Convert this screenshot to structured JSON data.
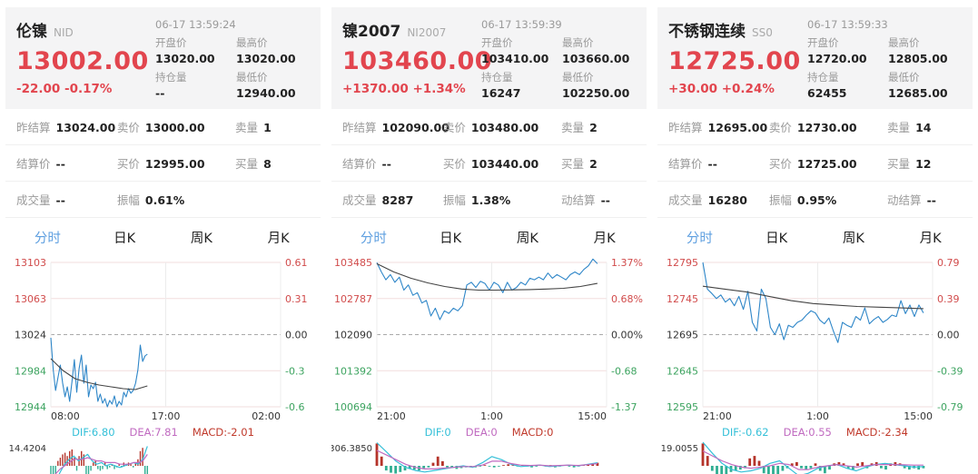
{
  "colors": {
    "accent_red": "#e2454e",
    "up": "#d14b4b",
    "down": "#3ca35f",
    "flat": "#333333",
    "price_line": "#2e86c8",
    "avg_line": "#444444",
    "dif": "#35c0d8",
    "dea": "#c06ac0",
    "hist_up": "#b5342a",
    "hist_down": "#2fae92",
    "tab_active": "#5e9fe0",
    "header_bg": "#f4f4f5"
  },
  "panels": [
    {
      "title": "伦镍",
      "code": "NID",
      "timestamp": "06-17 13:59:24",
      "last_price": "13002.00",
      "change": "-22.00 -0.17%",
      "fields": {
        "open": {
          "label": "开盘价",
          "value": "13020.00"
        },
        "high": {
          "label": "最高价",
          "value": "13020.00"
        },
        "position": {
          "label": "持仓量",
          "value": "--"
        },
        "low": {
          "label": "最低价",
          "value": "12940.00"
        }
      },
      "rows": [
        [
          {
            "label": "昨结算",
            "value": "13024.00"
          },
          {
            "label": "卖价",
            "value": "13000.00"
          },
          {
            "label": "卖量",
            "value": "1"
          }
        ],
        [
          {
            "label": "结算价",
            "value": "--"
          },
          {
            "label": "买价",
            "value": "12995.00"
          },
          {
            "label": "买量",
            "value": "8"
          }
        ],
        [
          {
            "label": "成交量",
            "value": "--"
          },
          {
            "label": "振幅",
            "value": "0.61%"
          },
          {
            "label": "",
            "value": ""
          }
        ]
      ],
      "tabs": [
        {
          "label": "分时"
        },
        {
          "label": "日K"
        },
        {
          "label": "周K"
        },
        {
          "label": "月K"
        }
      ]
    },
    {
      "title": "镍2007",
      "code": "NI2007",
      "timestamp": "06-17 13:59:39",
      "last_price": "103460.00",
      "change": "+1370.00 +1.34%",
      "fields": {
        "open": {
          "label": "开盘价",
          "value": "103410.00"
        },
        "high": {
          "label": "最高价",
          "value": "103660.00"
        },
        "position": {
          "label": "持仓量",
          "value": "16247"
        },
        "low": {
          "label": "最低价",
          "value": "102250.00"
        }
      },
      "rows": [
        [
          {
            "label": "昨结算",
            "value": "102090.00"
          },
          {
            "label": "卖价",
            "value": "103480.00"
          },
          {
            "label": "卖量",
            "value": "2"
          }
        ],
        [
          {
            "label": "结算价",
            "value": "--"
          },
          {
            "label": "买价",
            "value": "103440.00"
          },
          {
            "label": "买量",
            "value": "2"
          }
        ],
        [
          {
            "label": "成交量",
            "value": "8287"
          },
          {
            "label": "振幅",
            "value": "1.38%"
          },
          {
            "label": "动结算",
            "value": "--"
          }
        ]
      ],
      "tabs": [
        {
          "label": "分时"
        },
        {
          "label": "日K"
        },
        {
          "label": "周K"
        },
        {
          "label": "月K"
        }
      ]
    },
    {
      "title": "不锈钢连续",
      "code": "SS0",
      "timestamp": "06-17 13:59:33",
      "last_price": "12725.00",
      "change": "+30.00 +0.24%",
      "fields": {
        "open": {
          "label": "开盘价",
          "value": "12720.00"
        },
        "high": {
          "label": "最高价",
          "value": "12805.00"
        },
        "position": {
          "label": "持仓量",
          "value": "62455"
        },
        "low": {
          "label": "最低价",
          "value": "12685.00"
        }
      },
      "rows": [
        [
          {
            "label": "昨结算",
            "value": "12695.00"
          },
          {
            "label": "卖价",
            "value": "12730.00"
          },
          {
            "label": "卖量",
            "value": "14"
          }
        ],
        [
          {
            "label": "结算价",
            "value": "--"
          },
          {
            "label": "买价",
            "value": "12725.00"
          },
          {
            "label": "买量",
            "value": "12"
          }
        ],
        [
          {
            "label": "成交量",
            "value": "16280"
          },
          {
            "label": "振幅",
            "value": "0.95%"
          },
          {
            "label": "动结算",
            "value": "--"
          }
        ]
      ],
      "tabs": [
        {
          "label": "分时"
        },
        {
          "label": "日K"
        },
        {
          "label": "周K"
        },
        {
          "label": "月K"
        }
      ]
    }
  ],
  "chart_data": [
    {
      "type": "line",
      "title": "伦镍 分时图",
      "x_labels": [
        "08:00",
        "17:00",
        "02:00"
      ],
      "y_axis": {
        "labels": [
          "13103",
          "13063",
          "13024",
          "12984",
          "12944"
        ],
        "colors": [
          "up",
          "up",
          "flat",
          "down",
          "down"
        ]
      },
      "y2_axis": {
        "labels": [
          "0.61",
          "0.31",
          "0.00",
          "-0.3",
          "-0.6"
        ]
      },
      "ylim": [
        12944,
        13103
      ],
      "series": [
        {
          "name": "price",
          "xrange": [
            0,
            0.42
          ],
          "values": [
            13020,
            12985,
            12962,
            12976,
            12990,
            12970,
            12955,
            12966,
            12950,
            12972,
            12996,
            12960,
            12986,
            13001,
            12970,
            12990,
            12955,
            12968,
            12964,
            12971,
            12950,
            12958,
            12948,
            12953,
            12944,
            12951,
            12947,
            12956,
            12944,
            12950,
            12946,
            12960,
            12955,
            12964,
            12959,
            12962,
            12970,
            12985,
            13012,
            12994,
            13000,
            13002
          ]
        },
        {
          "name": "avg",
          "xrange": [
            0,
            0.42
          ],
          "values": [
            12997,
            12984,
            12975,
            12971,
            12968,
            12966,
            12964,
            12963,
            12967
          ]
        }
      ],
      "macd": {
        "labels": {
          "dif": "DIF:6.80",
          "dea": "DEA:7.81",
          "macd": "MACD:-2.01"
        },
        "y_top": "14.4204",
        "y_bottom": "-14.4204",
        "ylim": 14.4204,
        "hist": {
          "xrange": [
            0,
            0.42
          ],
          "values": [
            -12,
            -9,
            -5,
            3,
            5,
            7,
            8,
            6,
            9,
            10,
            5,
            -3,
            6,
            9,
            7,
            -5,
            -6,
            -3,
            2,
            3,
            -2,
            -3,
            -2,
            2,
            -2,
            -1,
            1,
            -2,
            -1,
            1,
            -1,
            2,
            1,
            2,
            1,
            -1,
            2,
            4,
            9,
            11,
            -6,
            -9
          ]
        },
        "dif": {
          "xrange": [
            0,
            0.42
          ],
          "values": [
            -14,
            -10,
            -4,
            1,
            4,
            6,
            3,
            5,
            7,
            3,
            1,
            2,
            0,
            1,
            0,
            -1,
            0,
            1,
            2,
            1,
            4,
            12
          ]
        },
        "dea": {
          "xrange": [
            0,
            0.42
          ],
          "values": [
            -8,
            -5,
            -2,
            0,
            2,
            4,
            4,
            4,
            5,
            4,
            3,
            3,
            2,
            2,
            2,
            1,
            1,
            1,
            2,
            2,
            3,
            7
          ]
        }
      }
    },
    {
      "type": "line",
      "title": "镍2007 分时图",
      "x_labels": [
        "21:00",
        "1:00",
        "15:00"
      ],
      "y_axis": {
        "labels": [
          "103485",
          "102787",
          "102090",
          "101392",
          "100694"
        ],
        "colors": [
          "up",
          "up",
          "flat",
          "down",
          "down"
        ]
      },
      "y2_axis": {
        "labels": [
          "1.37%",
          "0.68%",
          "0.00%",
          "-0.68",
          "-1.37"
        ]
      },
      "ylim": [
        100694,
        103485
      ],
      "series": [
        {
          "name": "price",
          "xrange": [
            0,
            0.96
          ],
          "values": [
            103480,
            103300,
            103150,
            103250,
            103100,
            103200,
            102950,
            103050,
            102850,
            102900,
            102700,
            102750,
            102450,
            102600,
            102380,
            102550,
            102500,
            102600,
            102550,
            102650,
            103050,
            103100,
            103000,
            103120,
            103080,
            102950,
            103100,
            103050,
            102900,
            103100,
            102950,
            103000,
            103100,
            103050,
            103180,
            103150,
            103200,
            103150,
            103280,
            103180,
            103250,
            103200,
            103150,
            103250,
            103300,
            103250,
            103350,
            103420,
            103550,
            103460
          ]
        },
        {
          "name": "avg",
          "xrange": [
            0,
            0.96
          ],
          "values": [
            103460,
            103300,
            103180,
            103090,
            103020,
            102970,
            102950,
            102950,
            102955,
            102960,
            102970,
            102985,
            103020,
            103080
          ]
        }
      ],
      "macd": {
        "labels": {
          "dif": "DIF:0",
          "dea": "DEA:0",
          "macd": "MACD:0"
        },
        "y_top": "306.3850",
        "y_bottom": "306.3850",
        "ylim": 306.385,
        "hist": {
          "xrange": [
            0,
            0.96
          ],
          "values": [
            290,
            120,
            -60,
            -90,
            -100,
            -80,
            -60,
            -40,
            -50,
            -60,
            -30,
            -20,
            40,
            120,
            60,
            -20,
            -30,
            -40,
            -30,
            -20,
            -10,
            -20,
            -10,
            10,
            -10,
            -20,
            -10,
            10,
            20,
            10,
            -10,
            10,
            -10,
            -20,
            -10,
            10,
            -10,
            10,
            -20,
            -10,
            10,
            -10,
            -20,
            -10,
            10,
            20,
            30,
            40
          ]
        },
        "dif": {
          "xrange": [
            0,
            0.96
          ],
          "values": [
            300,
            180,
            60,
            -20,
            -60,
            -80,
            -60,
            -40,
            -20,
            0,
            -20,
            40,
            120,
            80,
            20,
            -10,
            0,
            10,
            -10,
            0,
            10,
            0,
            20,
            40
          ]
        },
        "dea": {
          "xrange": [
            0,
            0.96
          ],
          "values": [
            200,
            140,
            80,
            20,
            -20,
            -40,
            -40,
            -30,
            -20,
            -10,
            -10,
            10,
            60,
            60,
            30,
            10,
            5,
            10,
            0,
            5,
            10,
            5,
            15,
            30
          ]
        }
      }
    },
    {
      "type": "line",
      "title": "不锈钢连续 分时图",
      "x_labels": [
        "21:00",
        "1:00",
        "15:00"
      ],
      "y_axis": {
        "labels": [
          "12795",
          "12745",
          "12695",
          "12645",
          "12595"
        ],
        "colors": [
          "up",
          "up",
          "flat",
          "down",
          "down"
        ]
      },
      "y2_axis": {
        "labels": [
          "0.79",
          "0.39",
          "0.00",
          "-0.39",
          "-0.79"
        ]
      },
      "ylim": [
        12595,
        12795
      ],
      "series": [
        {
          "name": "price",
          "xrange": [
            0,
            0.96
          ],
          "values": [
            12795,
            12758,
            12752,
            12745,
            12750,
            12740,
            12745,
            12735,
            12748,
            12730,
            12755,
            12712,
            12700,
            12758,
            12745,
            12705,
            12695,
            12710,
            12688,
            12708,
            12705,
            12712,
            12715,
            12722,
            12728,
            12725,
            12715,
            12710,
            12718,
            12700,
            12684,
            12712,
            12708,
            12705,
            12720,
            12715,
            12732,
            12710,
            12716,
            12720,
            12712,
            12716,
            12722,
            12720,
            12742,
            12724,
            12736,
            12720,
            12736,
            12725
          ]
        },
        {
          "name": "avg",
          "xrange": [
            0,
            0.96
          ],
          "values": [
            12762,
            12758,
            12754,
            12748,
            12742,
            12738,
            12736,
            12734,
            12733,
            12732,
            12731
          ]
        }
      ],
      "macd": {
        "labels": {
          "dif": "DIF:-0.62",
          "dea": "DEA:0.55",
          "macd": "MACD:-2.34"
        },
        "y_top": "19.0055",
        "y_bottom": "-19.0055",
        "ylim": 19.0055,
        "hist": {
          "xrange": [
            0,
            0.96
          ],
          "values": [
            18,
            8,
            -4,
            -8,
            -9,
            -7,
            -5,
            -4,
            -3,
            -2,
            6,
            8,
            4,
            -6,
            -10,
            -12,
            -8,
            -4,
            -2,
            2,
            3,
            -2,
            -3,
            -2,
            2,
            -4,
            -6,
            -3,
            2,
            3,
            2,
            -2,
            -3,
            2,
            3,
            -2,
            2,
            3,
            -2,
            -3,
            2,
            3,
            2,
            -2,
            -3,
            -2,
            -3,
            -2
          ]
        },
        "dif": {
          "xrange": [
            0,
            0.96
          ],
          "values": [
            19,
            10,
            2,
            -3,
            -5,
            -4,
            -2,
            2,
            4,
            -2,
            -8,
            -6,
            -2,
            0,
            1,
            -2,
            -4,
            -1,
            1,
            2,
            1,
            0,
            -1,
            -0.6
          ]
        },
        "dea": {
          "xrange": [
            0,
            0.96
          ],
          "values": [
            12,
            8,
            4,
            1,
            -1,
            -2,
            -1,
            0,
            2,
            1,
            -3,
            -3,
            -1,
            0,
            1,
            0,
            -1,
            0,
            1,
            1,
            1,
            0.8,
            0.6,
            0.55
          ]
        }
      }
    }
  ]
}
